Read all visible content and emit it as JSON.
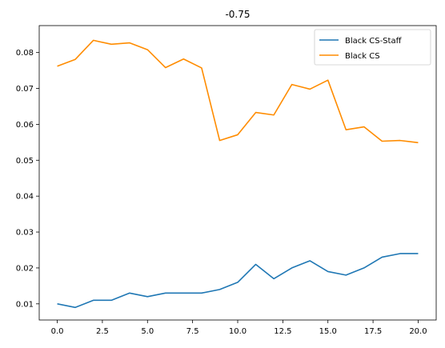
{
  "chart_data": {
    "type": "line",
    "title": "-0.75",
    "xlabel": "",
    "ylabel": "",
    "x": [
      0,
      1,
      2,
      3,
      4,
      5,
      6,
      7,
      8,
      9,
      10,
      11,
      12,
      13,
      14,
      15,
      16,
      17,
      18,
      19,
      20
    ],
    "xlim": [
      -1,
      21
    ],
    "ylim": [
      0.0055,
      0.0875
    ],
    "xticks": [
      0.0,
      2.5,
      5.0,
      7.5,
      10.0,
      12.5,
      15.0,
      17.5,
      20.0
    ],
    "xtick_labels": [
      "0.0",
      "2.5",
      "5.0",
      "7.5",
      "10.0",
      "12.5",
      "15.0",
      "17.5",
      "20.0"
    ],
    "yticks": [
      0.01,
      0.02,
      0.03,
      0.04,
      0.05,
      0.06,
      0.07,
      0.08
    ],
    "ytick_labels": [
      "0.01",
      "0.02",
      "0.03",
      "0.04",
      "0.05",
      "0.06",
      "0.07",
      "0.08"
    ],
    "grid": false,
    "legend_position": "top-right",
    "series": [
      {
        "name": "Black CS-Staff",
        "color": "#1f77b4",
        "values": [
          0.01,
          0.009,
          0.011,
          0.011,
          0.013,
          0.012,
          0.013,
          0.013,
          0.013,
          0.014,
          0.016,
          0.021,
          0.017,
          0.02,
          0.022,
          0.019,
          0.018,
          0.02,
          0.023,
          0.024,
          0.024
        ]
      },
      {
        "name": "Black CS",
        "color": "#ff8c00",
        "values": [
          0.0762,
          0.0781,
          0.0834,
          0.0823,
          0.0827,
          0.0808,
          0.0758,
          0.0782,
          0.0757,
          0.0555,
          0.0571,
          0.0633,
          0.0626,
          0.0711,
          0.0698,
          0.0723,
          0.0585,
          0.0593,
          0.0553,
          0.0555,
          0.0549
        ]
      }
    ]
  }
}
